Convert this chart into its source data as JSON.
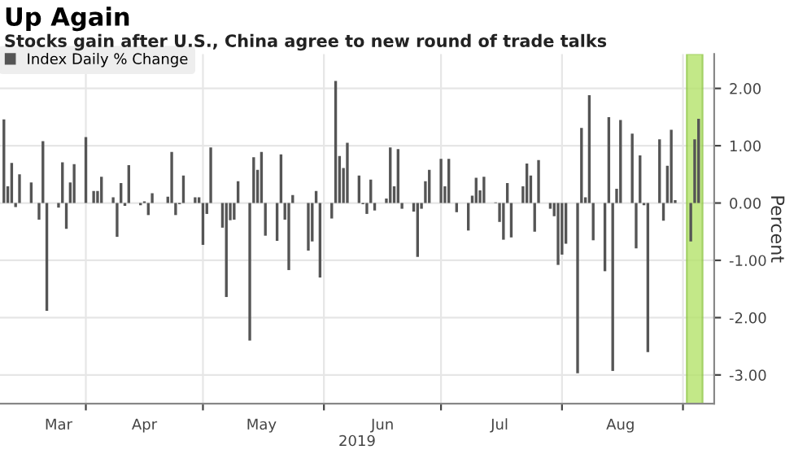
{
  "chart_data": {
    "type": "bar",
    "title": "Up Again",
    "subtitle": "Stocks gain after U.S., China agree to new round of trade talks",
    "xlabel": "2019",
    "ylabel": "Percent",
    "series": [
      {
        "name": "Index Daily % Change",
        "color": "#555555",
        "x": [
          "2019-03-11",
          "2019-03-12",
          "2019-03-13",
          "2019-03-14",
          "2019-03-15",
          "2019-03-18",
          "2019-03-19",
          "2019-03-20",
          "2019-03-21",
          "2019-03-22",
          "2019-03-25",
          "2019-03-26",
          "2019-03-27",
          "2019-03-28",
          "2019-03-29",
          "2019-04-01",
          "2019-04-02",
          "2019-04-03",
          "2019-04-04",
          "2019-04-05",
          "2019-04-08",
          "2019-04-09",
          "2019-04-10",
          "2019-04-11",
          "2019-04-12",
          "2019-04-15",
          "2019-04-16",
          "2019-04-17",
          "2019-04-18",
          "2019-04-22",
          "2019-04-23",
          "2019-04-24",
          "2019-04-25",
          "2019-04-26",
          "2019-04-29",
          "2019-04-30",
          "2019-05-01",
          "2019-05-02",
          "2019-05-03",
          "2019-05-06",
          "2019-05-07",
          "2019-05-08",
          "2019-05-09",
          "2019-05-10",
          "2019-05-13",
          "2019-05-14",
          "2019-05-15",
          "2019-05-16",
          "2019-05-17",
          "2019-05-20",
          "2019-05-21",
          "2019-05-22",
          "2019-05-23",
          "2019-05-24",
          "2019-05-28",
          "2019-05-29",
          "2019-05-30",
          "2019-05-31",
          "2019-06-03",
          "2019-06-04",
          "2019-06-05",
          "2019-06-06",
          "2019-06-07",
          "2019-06-10",
          "2019-06-11",
          "2019-06-12",
          "2019-06-13",
          "2019-06-14",
          "2019-06-17",
          "2019-06-18",
          "2019-06-19",
          "2019-06-20",
          "2019-06-21",
          "2019-06-24",
          "2019-06-25",
          "2019-06-26",
          "2019-06-27",
          "2019-06-28",
          "2019-07-01",
          "2019-07-02",
          "2019-07-03",
          "2019-07-05",
          "2019-07-08",
          "2019-07-09",
          "2019-07-10",
          "2019-07-11",
          "2019-07-12",
          "2019-07-15",
          "2019-07-16",
          "2019-07-17",
          "2019-07-18",
          "2019-07-19",
          "2019-07-22",
          "2019-07-23",
          "2019-07-24",
          "2019-07-25",
          "2019-07-26",
          "2019-07-29",
          "2019-07-30",
          "2019-07-31",
          "2019-08-01",
          "2019-08-02",
          "2019-08-05",
          "2019-08-06",
          "2019-08-07",
          "2019-08-08",
          "2019-08-09",
          "2019-08-12",
          "2019-08-13",
          "2019-08-14",
          "2019-08-15",
          "2019-08-16",
          "2019-08-19",
          "2019-08-20",
          "2019-08-21",
          "2019-08-22",
          "2019-08-23",
          "2019-08-26",
          "2019-08-27",
          "2019-08-28",
          "2019-08-29",
          "2019-08-30",
          "2019-09-03",
          "2019-09-04",
          "2019-09-05"
        ],
        "values": [
          1.46,
          0.29,
          0.7,
          -0.07,
          0.5,
          0.36,
          0.0,
          -0.29,
          1.08,
          -1.88,
          -0.08,
          0.71,
          -0.45,
          0.36,
          0.68,
          1.15,
          0.0,
          0.21,
          0.21,
          0.46,
          0.1,
          -0.59,
          0.35,
          -0.05,
          0.66,
          -0.04,
          0.03,
          -0.21,
          0.17,
          0.11,
          0.89,
          -0.21,
          -0.02,
          0.48,
          0.1,
          0.1,
          -0.73,
          -0.19,
          0.97,
          -0.43,
          -1.64,
          -0.3,
          -0.29,
          0.38,
          -2.4,
          0.8,
          0.58,
          0.89,
          -0.57,
          -0.66,
          0.85,
          -0.29,
          -1.17,
          0.14,
          -0.83,
          -0.67,
          0.21,
          -1.3,
          -0.27,
          2.13,
          0.82,
          0.61,
          1.05,
          0.48,
          -0.02,
          -0.19,
          0.41,
          -0.13,
          0.08,
          0.97,
          0.29,
          0.94,
          -0.1,
          -0.15,
          -0.94,
          -0.1,
          0.38,
          0.58,
          0.77,
          0.29,
          0.77,
          -0.16,
          -0.48,
          0.13,
          0.44,
          0.22,
          0.46,
          0.01,
          -0.33,
          -0.64,
          0.35,
          -0.6,
          0.29,
          0.69,
          0.48,
          -0.5,
          0.75,
          -0.1,
          -0.23,
          -1.08,
          -0.9,
          -0.71,
          -2.97,
          1.31,
          0.1,
          1.88,
          -0.65,
          -1.19,
          1.5,
          -2.93,
          0.25,
          1.45,
          1.21,
          -0.79,
          0.83,
          -0.04,
          -2.6,
          1.11,
          -0.31,
          0.65,
          1.28,
          0.05,
          -0.67,
          1.11,
          1.47
        ]
      }
    ],
    "xlim": [
      "2019-03-10",
      "2019-09-09"
    ],
    "xticks": [
      {
        "value": "2019-03-25",
        "label": "Mar"
      },
      {
        "value": "2019-04-01",
        "label": null
      },
      {
        "value": "2019-04-16",
        "label": "Apr"
      },
      {
        "value": "2019-05-01",
        "label": null
      },
      {
        "value": "2019-05-16",
        "label": "May"
      },
      {
        "value": "2019-06-01",
        "label": null
      },
      {
        "value": "2019-06-16",
        "label": "Jun"
      },
      {
        "value": "2019-07-01",
        "label": null
      },
      {
        "value": "2019-07-16",
        "label": "Jul"
      },
      {
        "value": "2019-08-01",
        "label": null
      },
      {
        "value": "2019-08-16",
        "label": "Aug"
      },
      {
        "value": "2019-09-01",
        "label": null
      }
    ],
    "ylim": [
      -3.5,
      2.6
    ],
    "yticks": [
      {
        "value": 2,
        "label": "2.00"
      },
      {
        "value": 1,
        "label": "1.00"
      },
      {
        "value": 0,
        "label": "0.00"
      },
      {
        "value": -1,
        "label": "-1.00"
      },
      {
        "value": -2,
        "label": "-2.00"
      },
      {
        "value": -3,
        "label": "-3.00"
      }
    ],
    "bands": [
      {
        "axis": "x",
        "from": "2019-09-02",
        "to": "2019-09-06",
        "color": "#b5e36b"
      }
    ],
    "grid": true,
    "legend": "top left"
  }
}
